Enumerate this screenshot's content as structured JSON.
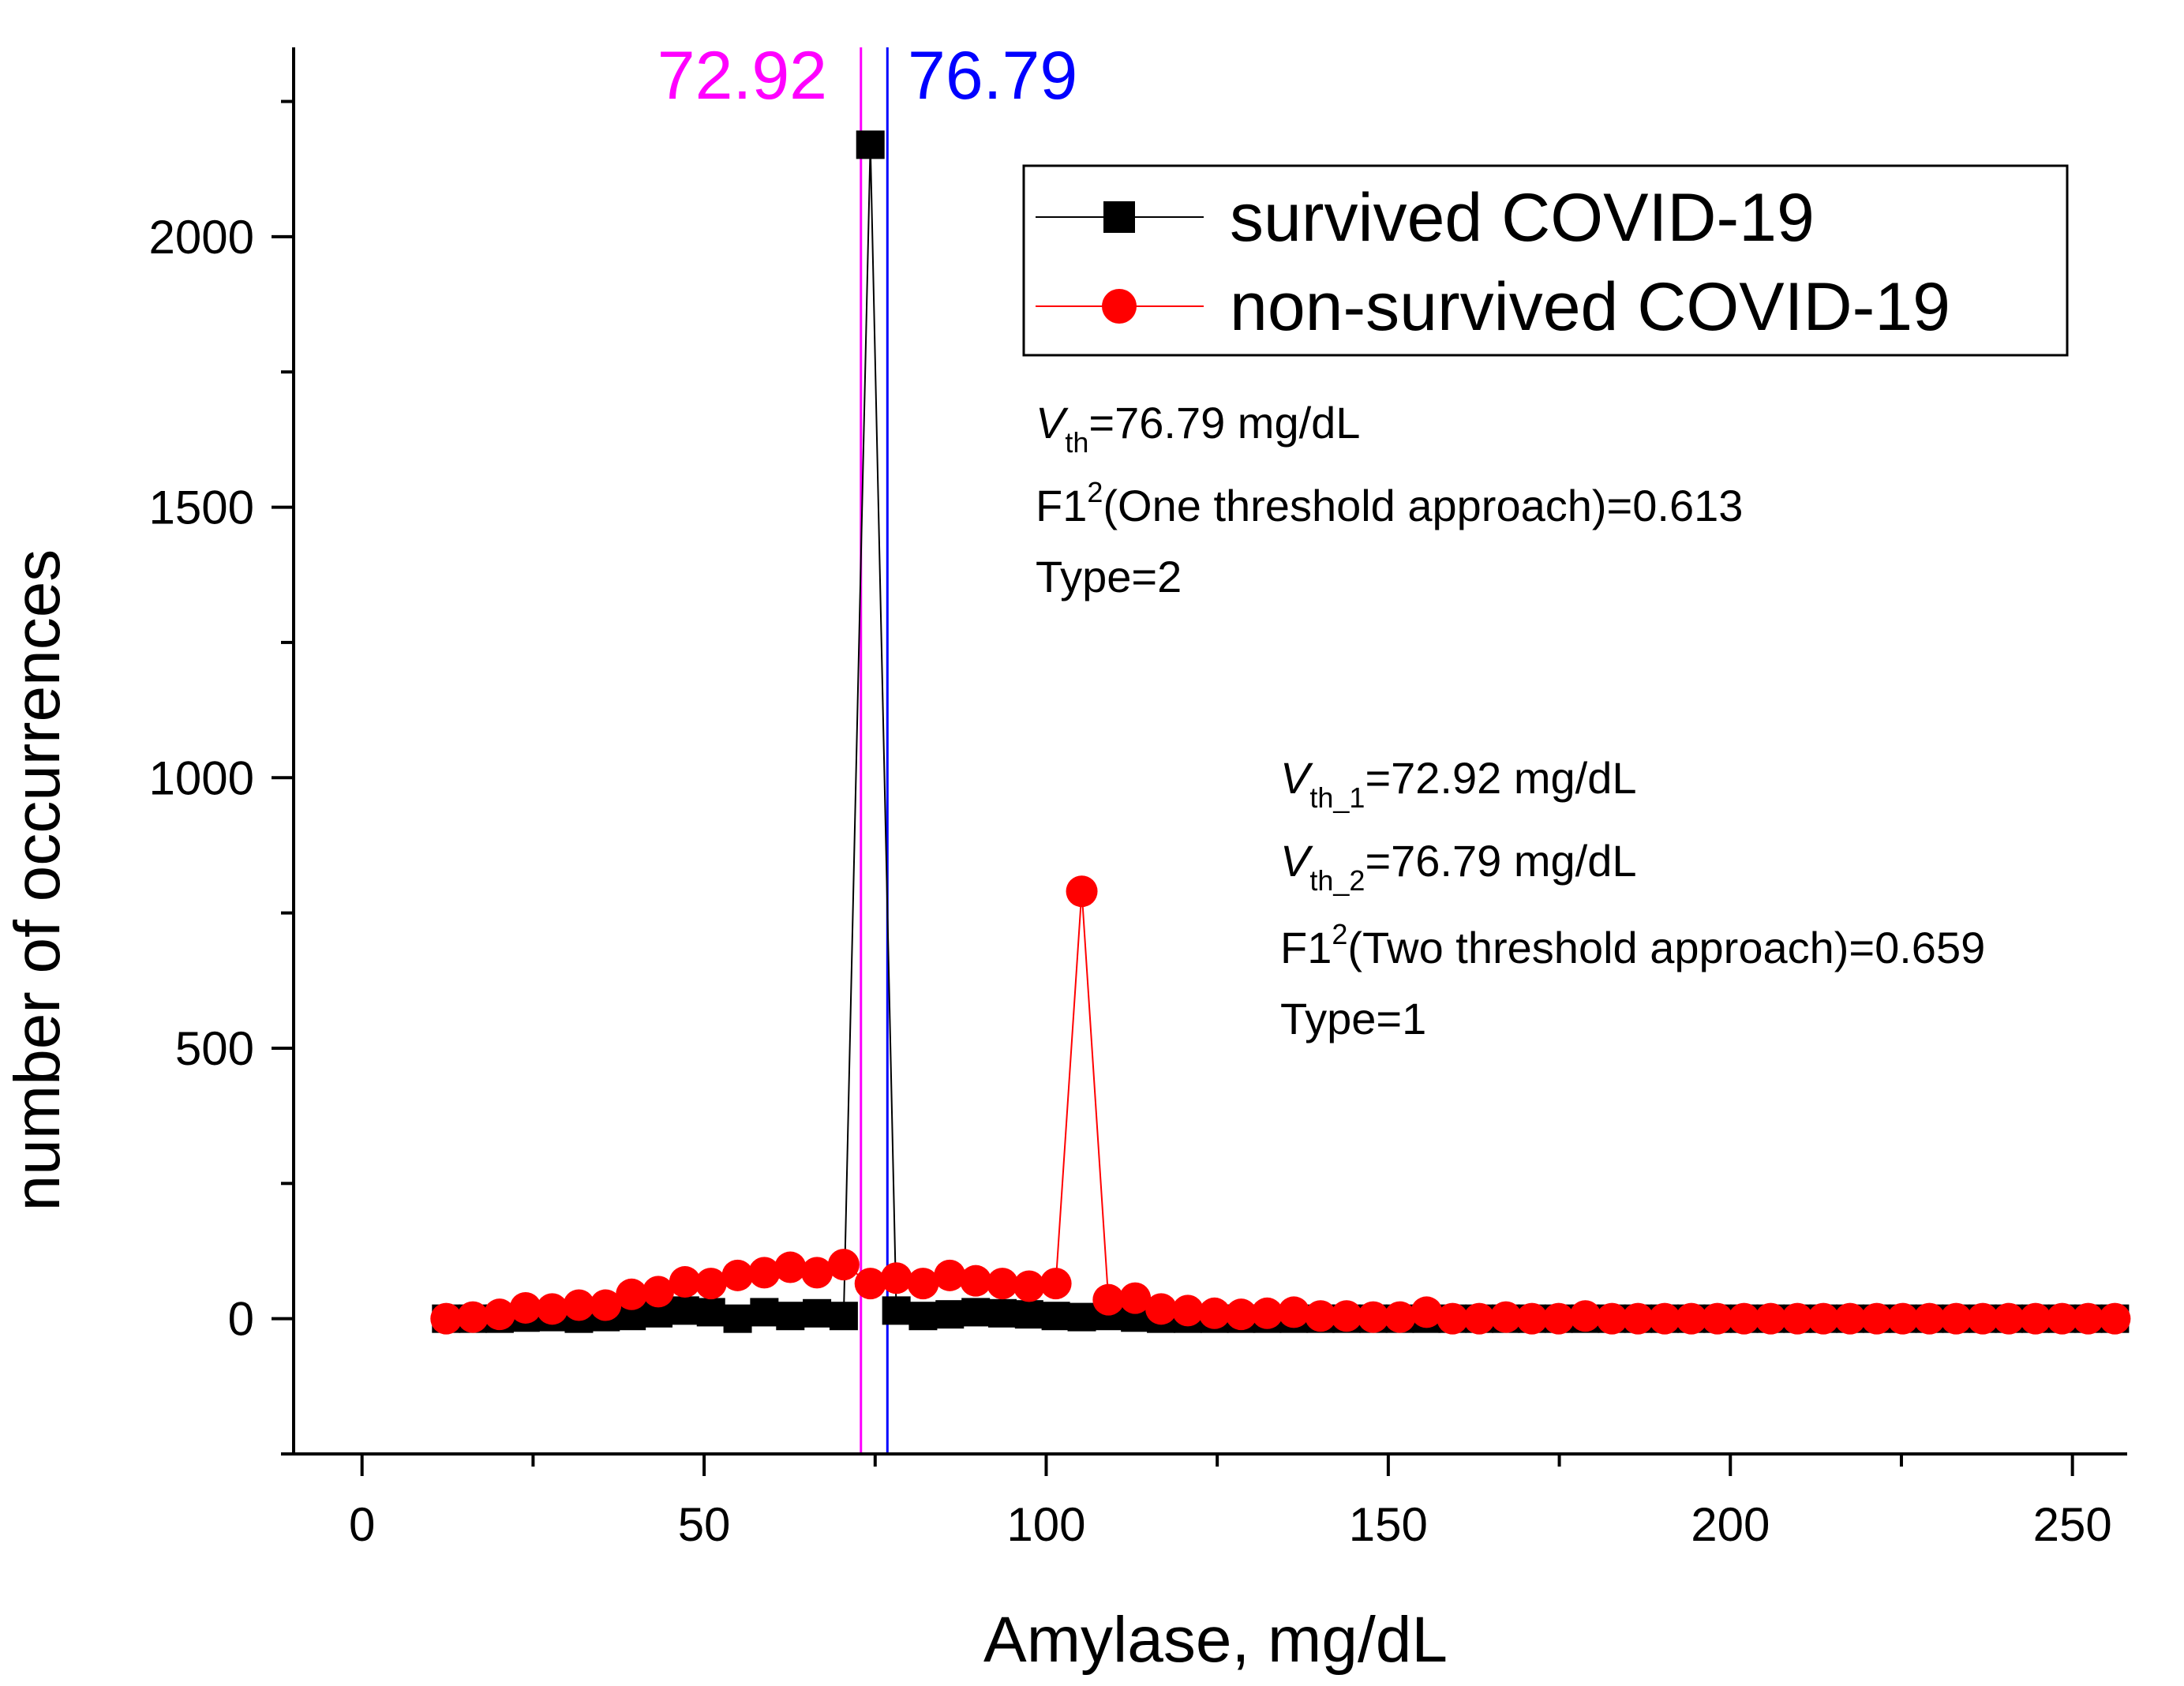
{
  "chart_data": {
    "type": "line",
    "title": "",
    "xlabel": "Amylase, mg/dL",
    "ylabel": "number of occurrences",
    "xlim": [
      -10,
      258
    ],
    "ylim": [
      -250,
      2350
    ],
    "xticks": [
      0,
      50,
      100,
      150,
      200,
      250
    ],
    "yticks": [
      0,
      500,
      1000,
      1500,
      2000
    ],
    "xtick_labels": [
      "0",
      "50",
      "100",
      "150",
      "200",
      "250"
    ],
    "ytick_labels": [
      "0",
      "500",
      "1000",
      "1500",
      "2000"
    ],
    "grid": false,
    "legend_position": "top-right",
    "series": [
      {
        "name": "survived COVID-19",
        "color": "#000000",
        "marker": "square",
        "x": [
          12.3,
          16.2,
          20.1,
          23.9,
          27.8,
          31.7,
          35.6,
          39.4,
          43.3,
          47.2,
          51.0,
          54.9,
          58.8,
          62.6,
          66.5,
          70.4,
          74.3,
          78.1,
          82.0,
          85.9,
          89.7,
          93.6,
          97.5,
          101.4,
          105.2,
          109.1,
          113.0,
          116.8,
          120.7,
          124.6,
          128.5,
          132.3,
          136.2,
          140.1,
          143.9,
          147.8,
          151.7,
          155.6,
          159.4,
          163.3,
          167.2,
          171.0,
          174.9,
          178.8,
          182.7,
          186.5,
          190.4,
          194.3,
          198.1,
          202.0,
          205.9,
          209.8,
          213.6,
          217.5,
          221.4,
          225.2,
          229.1,
          233.0,
          236.9,
          240.7,
          244.6,
          248.5,
          252.3,
          256.2
        ],
        "values": [
          0,
          0,
          0,
          2,
          3,
          0,
          3,
          5,
          10,
          15,
          12,
          0,
          12,
          5,
          10,
          5,
          2170,
          15,
          5,
          8,
          12,
          10,
          8,
          5,
          3,
          5,
          2,
          0,
          0,
          0,
          0,
          0,
          0,
          0,
          0,
          0,
          0,
          0,
          0,
          0,
          0,
          0,
          0,
          0,
          0,
          0,
          0,
          0,
          0,
          0,
          0,
          0,
          0,
          0,
          0,
          0,
          0,
          0,
          0,
          0,
          0,
          0,
          0,
          0
        ]
      },
      {
        "name": "non-survived COVID-19",
        "color": "#ff0000",
        "marker": "circle",
        "x": [
          12.3,
          16.2,
          20.1,
          23.9,
          27.8,
          31.7,
          35.6,
          39.4,
          43.3,
          47.2,
          51.0,
          54.9,
          58.8,
          62.6,
          66.5,
          70.4,
          74.3,
          78.1,
          82.0,
          85.9,
          89.7,
          93.6,
          97.5,
          101.4,
          105.2,
          109.1,
          113.0,
          116.8,
          120.7,
          124.6,
          128.5,
          132.3,
          136.2,
          140.1,
          143.9,
          147.8,
          151.7,
          155.6,
          159.4,
          163.3,
          167.2,
          171.0,
          174.9,
          178.8,
          182.7,
          186.5,
          190.4,
          194.3,
          198.1,
          202.0,
          205.9,
          209.8,
          213.6,
          217.5,
          221.4,
          225.2,
          229.1,
          233.0,
          236.9,
          240.7,
          244.6,
          248.5,
          252.3,
          256.2
        ],
        "values": [
          0,
          3,
          8,
          20,
          18,
          25,
          25,
          45,
          50,
          68,
          65,
          80,
          85,
          95,
          85,
          100,
          65,
          75,
          65,
          80,
          70,
          65,
          60,
          65,
          790,
          35,
          38,
          18,
          15,
          10,
          8,
          10,
          12,
          5,
          5,
          3,
          3,
          12,
          0,
          0,
          3,
          0,
          0,
          5,
          0,
          0,
          0,
          0,
          0,
          0,
          0,
          0,
          0,
          0,
          0,
          0,
          0,
          0,
          0,
          0,
          0,
          0,
          0,
          0
        ]
      }
    ],
    "threshold_lines": [
      {
        "value": 72.92,
        "label": "72.92",
        "color": "#ff00ff"
      },
      {
        "value": 76.79,
        "label": "76.79",
        "color": "#0000ff"
      }
    ],
    "annotations": {
      "one_threshold": {
        "v_letter": "V",
        "vth_sub": "th",
        "vth_rest": "=76.79 mg/dL",
        "f1_base": "F1",
        "f1_sup": "2",
        "f1_rest": "(One threshold approach)=0.613",
        "type": "Type=2"
      },
      "two_threshold": {
        "v_letter": "V",
        "vth1_sub": "th_1",
        "vth1_rest": "=72.92 mg/dL",
        "vth2_sub": "th_2",
        "vth2_rest": "=76.79 mg/dL",
        "f1_base": "F1",
        "f1_sup": "2",
        "f1_rest": "(Two threshold approach)=0.659",
        "type": "Type=1"
      }
    }
  }
}
